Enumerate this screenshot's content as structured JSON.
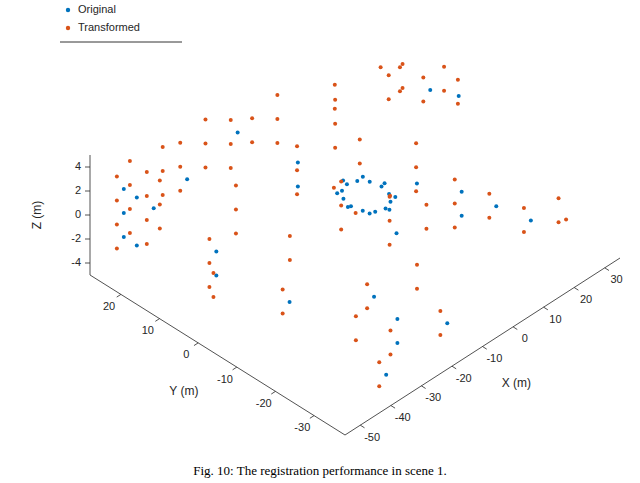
{
  "chart_data": {
    "type": "scatter",
    "caption": "Fig. 10: The registration performance in scene 1.",
    "x_label": "X (m)",
    "y_label": "Y (m)",
    "z_label": "Z (m)",
    "xlim": [
      -55,
      35
    ],
    "ylim": [
      -38,
      28
    ],
    "zlim": [
      -5,
      5
    ],
    "xticks": [
      -50,
      -40,
      -30,
      -20,
      -10,
      0,
      10,
      20,
      30
    ],
    "yticks": [
      -30,
      -20,
      -10,
      0,
      10,
      20
    ],
    "zticks": [
      -4,
      -2,
      0,
      2,
      4
    ],
    "legend": "northwest",
    "marker": "point",
    "series": [
      {
        "name": "Original",
        "color": "#0072BD",
        "x": [
          5,
          4.3,
          2.5,
          0,
          -2.5,
          -4.3,
          -5,
          -4.3,
          -2.5,
          0,
          2.5,
          4.3,
          6,
          4.2,
          0,
          -4.2,
          -6,
          -4.2,
          0,
          4.2,
          -49,
          -49,
          -49,
          -46,
          -46,
          -43,
          -29,
          -29,
          -39,
          -19,
          -24,
          11,
          11,
          16,
          21,
          -44,
          -44,
          -39,
          -11,
          -11,
          9,
          -4,
          29,
          26,
          -27,
          -13
        ],
        "y": [
          0,
          2.5,
          4.3,
          5,
          4.3,
          2.5,
          0,
          -2.5,
          -4.3,
          -5,
          -4.3,
          -2.5,
          0,
          4.2,
          6,
          4.2,
          0,
          -4.2,
          -6,
          -4.2,
          24,
          24,
          24,
          23,
          23,
          21,
          -31,
          -31,
          -36,
          -36,
          -21,
          -16,
          -16,
          -21,
          -26,
          4,
          4,
          -11,
          9,
          9,
          -6,
          -11,
          -1,
          4,
          25,
          23
        ],
        "z": [
          -1.8,
          -1.8,
          -1.8,
          -1.8,
          -1.8,
          -1.8,
          -1.8,
          -1.8,
          -1.8,
          -1.8,
          -1.8,
          -1.8,
          -1.7,
          -1.7,
          -1.7,
          -1.7,
          -1.7,
          -1.7,
          -1.7,
          -1.7,
          -2,
          0,
          2,
          -3,
          1,
          0,
          -3,
          -1,
          -3,
          -2,
          -2,
          -2,
          0,
          -1,
          -2,
          -2,
          0,
          -2,
          -1,
          1,
          -1,
          -2,
          2,
          2,
          -1,
          1
        ]
      },
      {
        "name": "Transformed",
        "color": "#D95319",
        "x": [
          -50,
          -50,
          -50,
          -50,
          -47,
          -47,
          -47,
          -47,
          -44,
          -44,
          -44,
          -44,
          -41,
          -41,
          -41,
          -35,
          -35,
          -35,
          -28,
          -28,
          -28,
          -21,
          -21,
          -21,
          -14,
          -14,
          -14,
          -7,
          -7,
          0,
          0,
          0,
          20,
          20,
          22,
          22,
          25,
          25,
          28,
          28,
          30,
          30,
          -10,
          -10,
          -10,
          5,
          5,
          5,
          10,
          10,
          10,
          -5,
          -5,
          -5,
          8,
          8,
          -12,
          -12,
          -12,
          2,
          2,
          -3,
          4,
          -6,
          10,
          10,
          10,
          15,
          15,
          20,
          20,
          25,
          25,
          30,
          -30,
          -30,
          -35,
          -35,
          -40,
          -40,
          -20,
          -20,
          -25,
          -25,
          -15,
          -15,
          -45,
          -45,
          -45,
          -50,
          -50,
          -40,
          -40,
          -30,
          -30,
          -30,
          -25,
          -25,
          30,
          30,
          30,
          15,
          15
        ],
        "y": [
          25,
          25,
          25,
          25,
          24,
          24,
          24,
          24,
          22,
          22,
          22,
          22,
          21,
          21,
          21,
          25,
          25,
          25,
          26,
          26,
          26,
          25,
          25,
          25,
          24,
          24,
          24,
          24,
          24,
          23,
          23,
          23,
          10,
          10,
          8,
          8,
          5,
          5,
          2,
          2,
          0,
          0,
          10,
          10,
          10,
          12,
          12,
          12,
          -5,
          -5,
          -5,
          -10,
          -10,
          -10,
          8,
          8,
          -3,
          -3,
          -3,
          -14,
          -14,
          6,
          -3,
          -2,
          -15,
          -15,
          -15,
          -20,
          -20,
          -25,
          -25,
          -30,
          -30,
          -28,
          -30,
          -30,
          -25,
          -25,
          -35,
          -35,
          -35,
          -35,
          -20,
          -20,
          -25,
          -25,
          5,
          5,
          5,
          0,
          0,
          -10,
          -10,
          10,
          10,
          10,
          0,
          0,
          15,
          15,
          20,
          20,
          20
        ],
        "z": [
          -3,
          -1,
          1,
          3,
          -2,
          0,
          2,
          4,
          -3,
          -1,
          1,
          3,
          -2,
          0,
          2,
          -1,
          1,
          3,
          -2,
          0,
          2,
          -1,
          1,
          3,
          -2,
          0,
          2,
          -1,
          1,
          -2,
          0,
          2,
          1,
          3,
          2,
          4,
          1,
          3,
          2,
          4,
          1,
          3,
          -2,
          0,
          2,
          -1,
          1,
          3,
          -2,
          0,
          2,
          -3,
          -1,
          1,
          -2,
          0,
          -2,
          0,
          2,
          -2,
          0,
          -1.8,
          -1.8,
          -1.8,
          -3,
          -1,
          1,
          -2,
          0,
          -3,
          -1,
          -2,
          0,
          -3,
          -4,
          -2,
          -3,
          -1,
          -4,
          -2,
          -3,
          -1,
          -3,
          -1,
          -2,
          0,
          -3,
          -1,
          1,
          -2,
          0,
          -3,
          -1,
          -2,
          0,
          2,
          -3,
          -1,
          -1,
          1,
          0,
          -1,
          1
        ]
      }
    ]
  }
}
